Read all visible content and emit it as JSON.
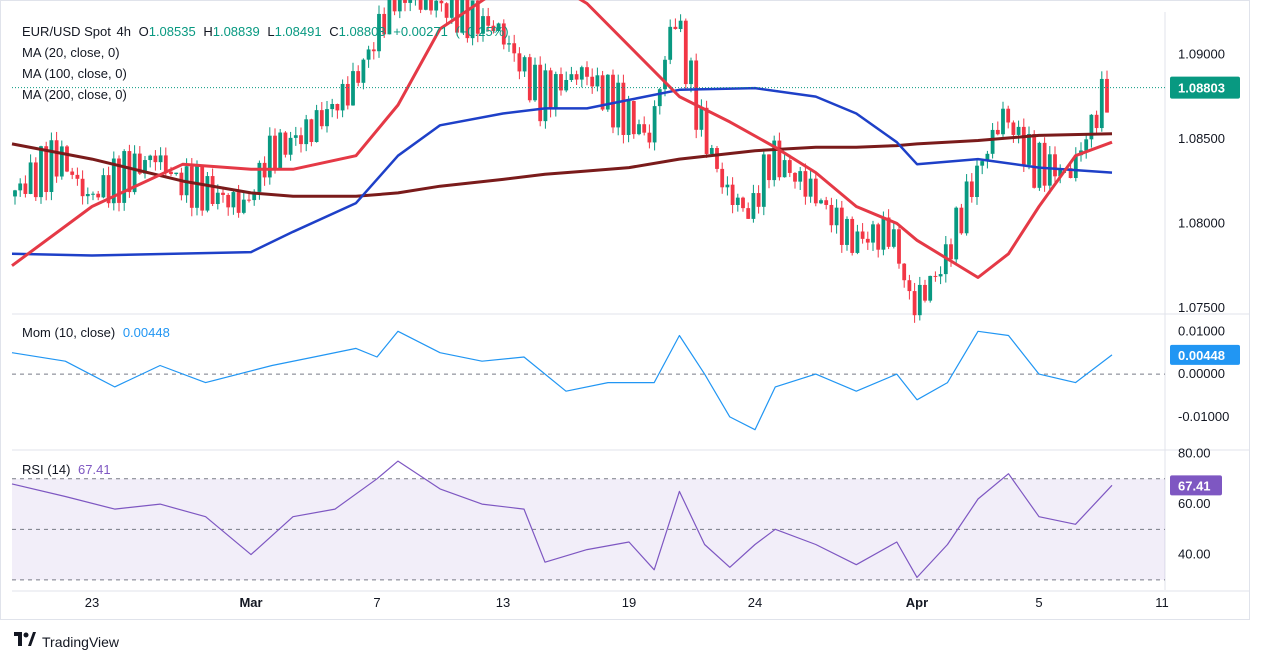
{
  "chart_data": [
    {
      "type": "line",
      "panel": "price",
      "instrument": "EUR/USD Spot",
      "timeframe": "4h",
      "ohlc": {
        "open_label": "O",
        "open": "1.08535",
        "high_label": "H",
        "high": "1.08839",
        "low_label": "L",
        "low": "1.08491",
        "close_label": "C",
        "close": "1.08803",
        "change": "+0.00271",
        "change_pct": "(+0.25%)"
      },
      "indicators": [
        {
          "label": "MA (20, close, 0)",
          "color": "#e53946"
        },
        {
          "label": "MA (100, close, 0)",
          "color": "#1e40c8"
        },
        {
          "label": "MA (200, close, 0)",
          "color": "#7a1b1b"
        }
      ],
      "yticks": [
        "1.09000",
        "1.08500",
        "1.08000",
        "1.07500"
      ],
      "ylim": [
        1.0747,
        1.0925
      ],
      "last_price": "1.08803",
      "last_price_value": 1.08803,
      "xticks": [
        "23",
        "Mar",
        "7",
        "13",
        "19",
        "24",
        "Apr",
        "5",
        "11"
      ],
      "x_dates": [
        "Feb 23",
        "Mar 1",
        "Mar 7",
        "Mar 13",
        "Mar 19",
        "Mar 24",
        "Apr 1",
        "Apr 5",
        "Apr 11"
      ],
      "series": [
        {
          "name": "MA (20, close, 0)",
          "x": [
            "Feb 20",
            "Feb 23",
            "Feb 27",
            "Mar 1",
            "Mar 3",
            "Mar 6",
            "Mar 8",
            "Mar 10",
            "Mar 13",
            "Mar 15",
            "Mar 17",
            "Mar 19",
            "Mar 21",
            "Mar 23",
            "Mar 25",
            "Mar 27",
            "Mar 29",
            "Mar 31",
            "Apr 1",
            "Apr 3",
            "Apr 4",
            "Apr 5",
            "Apr 6",
            "Apr 7"
          ],
          "values": [
            1.0775,
            1.081,
            1.0835,
            1.0832,
            1.0832,
            1.084,
            1.087,
            1.0915,
            1.094,
            1.0945,
            1.093,
            1.0905,
            1.0875,
            1.086,
            1.0845,
            1.083,
            1.081,
            1.08,
            1.079,
            1.0768,
            1.0782,
            1.081,
            1.084,
            1.0848
          ]
        },
        {
          "name": "MA (100, close, 0)",
          "x": [
            "Feb 20",
            "Feb 23",
            "Mar 1",
            "Mar 3",
            "Mar 6",
            "Mar 8",
            "Mar 10",
            "Mar 13",
            "Mar 15",
            "Mar 17",
            "Mar 19",
            "Mar 21",
            "Mar 24",
            "Mar 27",
            "Mar 29",
            "Mar 31",
            "Apr 1",
            "Apr 3",
            "Apr 5",
            "Apr 7"
          ],
          "values": [
            1.0782,
            1.0781,
            1.0783,
            1.0795,
            1.0812,
            1.084,
            1.0858,
            1.0865,
            1.0868,
            1.0868,
            1.0873,
            1.0879,
            1.088,
            1.0875,
            1.0865,
            1.0848,
            1.0835,
            1.0838,
            1.0833,
            1.083
          ]
        },
        {
          "name": "MA (200, close, 0)",
          "x": [
            "Feb 20",
            "Feb 23",
            "Feb 27",
            "Mar 1",
            "Mar 3",
            "Mar 6",
            "Mar 8",
            "Mar 10",
            "Mar 13",
            "Mar 15",
            "Mar 17",
            "Mar 19",
            "Mar 21",
            "Mar 24",
            "Mar 27",
            "Mar 29",
            "Mar 31",
            "Apr 1",
            "Apr 3",
            "Apr 5",
            "Apr 7"
          ],
          "values": [
            1.0847,
            1.0838,
            1.0825,
            1.0818,
            1.0816,
            1.0816,
            1.0818,
            1.0822,
            1.0826,
            1.0829,
            1.0831,
            1.0833,
            1.0838,
            1.0843,
            1.0845,
            1.0845,
            1.0846,
            1.0847,
            1.0849,
            1.0852,
            1.0853
          ]
        }
      ]
    },
    {
      "type": "line",
      "panel": "momentum",
      "label": "Mom (10, close)",
      "current_value_text": "0.00448",
      "current_value": 0.00448,
      "yticks": [
        "0.01000",
        "0.00000",
        "-0.01000"
      ],
      "ylim": [
        -0.0175,
        0.0138
      ],
      "series": [
        {
          "name": "Mom (10, close)",
          "x": [
            "Feb 20",
            "Feb 22",
            "Feb 24",
            "Feb 26",
            "Feb 28",
            "Mar 2",
            "Mar 4",
            "Mar 6",
            "Mar 7",
            "Mar 8",
            "Mar 10",
            "Mar 12",
            "Mar 14",
            "Mar 16",
            "Mar 18",
            "Mar 20",
            "Mar 21",
            "Mar 22",
            "Mar 23",
            "Mar 24",
            "Mar 25",
            "Mar 27",
            "Mar 29",
            "Mar 31",
            "Apr 1",
            "Apr 2",
            "Apr 3",
            "Apr 4",
            "Apr 5",
            "Apr 6",
            "Apr 7"
          ],
          "values": [
            0.005,
            0.003,
            -0.003,
            0.002,
            -0.002,
            0.002,
            0.004,
            0.006,
            0.004,
            0.01,
            0.005,
            0.003,
            0.004,
            -0.004,
            -0.002,
            -0.002,
            0.009,
            0.0,
            -0.01,
            -0.013,
            -0.003,
            0.0,
            -0.004,
            0.0,
            -0.006,
            -0.002,
            0.01,
            0.009,
            0.0,
            -0.002,
            0.00448
          ]
        }
      ],
      "reference_line": 0
    },
    {
      "type": "line",
      "panel": "rsi",
      "label": "RSI (14)",
      "current_value_text": "67.41",
      "current_value": 67.41,
      "yticks": [
        "80.00",
        "60.00",
        "40.00"
      ],
      "ylim": [
        26,
        81
      ],
      "levels": [
        70,
        50,
        30
      ],
      "series": [
        {
          "name": "RSI (14)",
          "x": [
            "Feb 20",
            "Feb 22",
            "Feb 24",
            "Feb 26",
            "Feb 28",
            "Mar 1",
            "Mar 3",
            "Mar 5",
            "Mar 7",
            "Mar 8",
            "Mar 10",
            "Mar 12",
            "Mar 14",
            "Mar 15",
            "Mar 17",
            "Mar 19",
            "Mar 20",
            "Mar 21",
            "Mar 22",
            "Mar 23",
            "Mar 24",
            "Mar 25",
            "Mar 27",
            "Mar 29",
            "Mar 31",
            "Apr 1",
            "Apr 2",
            "Apr 3",
            "Apr 4",
            "Apr 5",
            "Apr 6",
            "Apr 7"
          ],
          "values": [
            68,
            63,
            58,
            60,
            55,
            40,
            55,
            58,
            70,
            77,
            66,
            60,
            58,
            37,
            42,
            45,
            34,
            65,
            44,
            35,
            44,
            50,
            44,
            36,
            45,
            31,
            44,
            62,
            72,
            55,
            52,
            67.41
          ]
        }
      ]
    }
  ],
  "branding": {
    "text": "TradingView",
    "logo": "tradingview-logo"
  }
}
